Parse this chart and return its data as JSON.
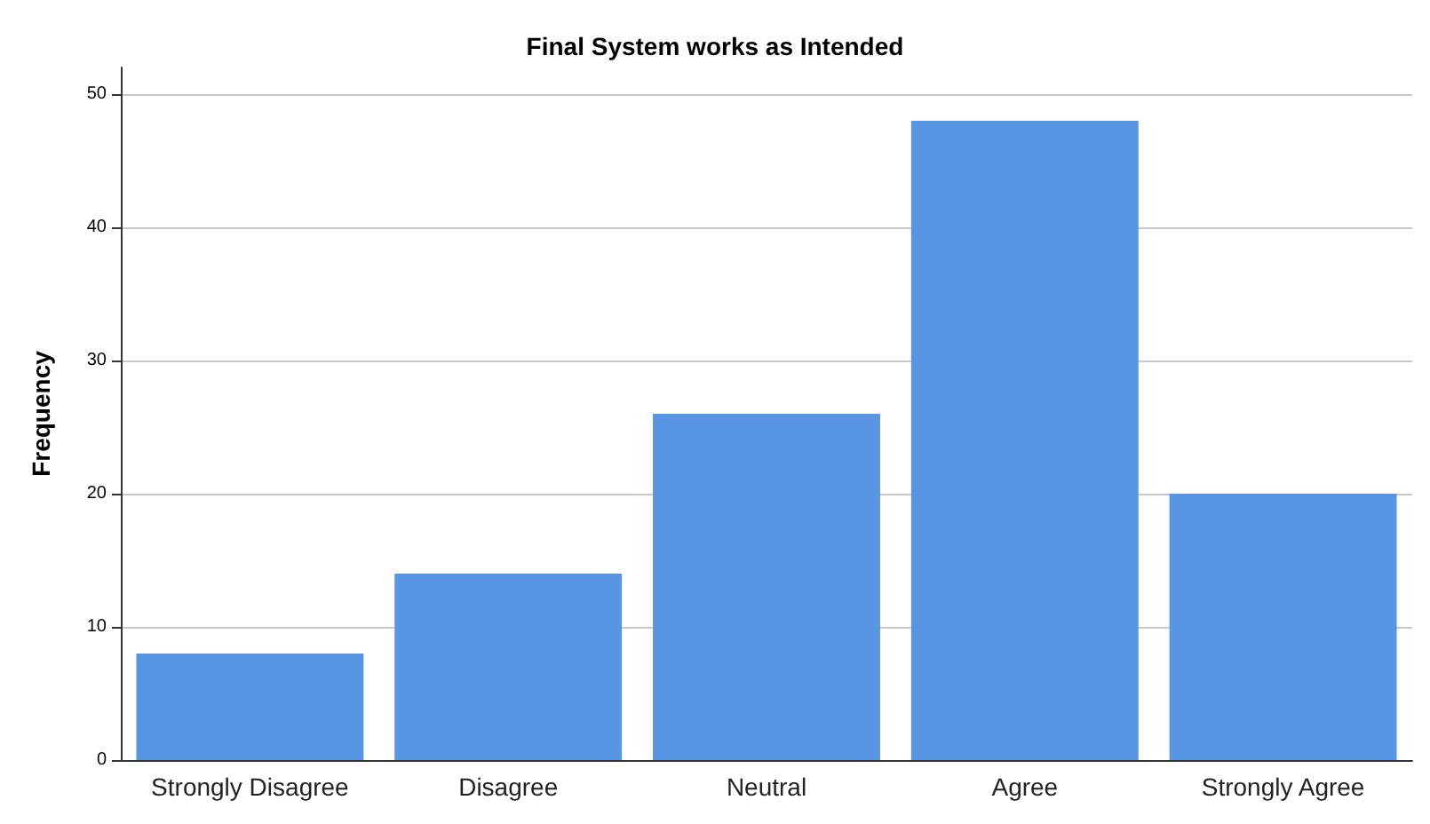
{
  "chart_data": {
    "type": "bar",
    "title": "Final System works as Intended",
    "ylabel": "Frequency",
    "categories": [
      "Strongly Disagree",
      "Disagree",
      "Neutral",
      "Agree",
      "Strongly Agree"
    ],
    "values": [
      8,
      14,
      26,
      48,
      20
    ],
    "color": "#5895e3",
    "ylim": [
      0,
      52
    ],
    "yticks": [
      0,
      10,
      20,
      30,
      40,
      50
    ],
    "grid": "y"
  }
}
